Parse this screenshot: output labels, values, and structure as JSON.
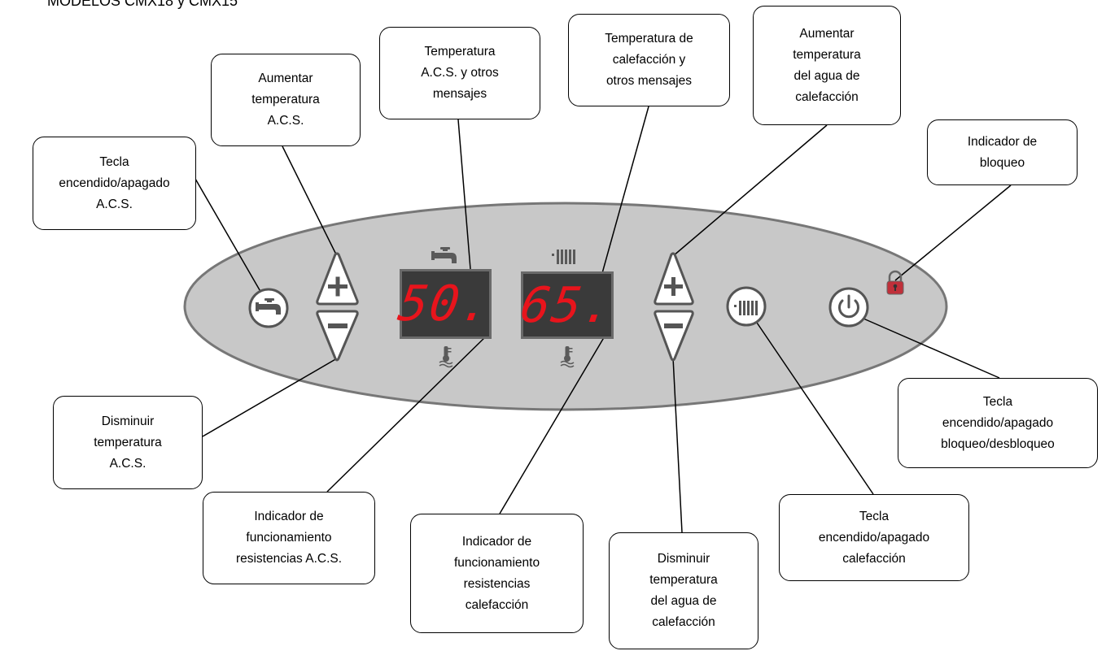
{
  "page_title": "MODELOS CMX18 y CMX15",
  "display": {
    "acs_value": "50.",
    "heating_value": "65."
  },
  "callouts": {
    "tecla_acs": "Tecla\nencendido/apagado\nA.C.S.",
    "aumentar_acs": "Aumentar\ntemperatura\nA.C.S.",
    "temp_acs_mensajes": "Temperatura\nA.C.S. y otros\nmensajes",
    "temp_calefaccion_mensajes": "Temperatura de\ncalefacción y\notros mensajes",
    "aumentar_calefaccion": "Aumentar\ntemperatura\ndel agua de\ncalefacción",
    "indicador_bloqueo": "Indicador  de\nbloqueo",
    "disminuir_acs": "Disminuir\ntemperatura\nA.C.S.",
    "resistencias_acs": "Indicador de\nfuncionamiento\nresistencias  A.C.S.",
    "resistencias_calefaccion": "Indicador  de\nfuncionamiento\nresistencias\ncalefacción",
    "disminuir_calefaccion": "Disminuir\ntemperatura\ndel agua de\ncalefacción",
    "tecla_calefaccion": "Tecla\nencendido/apagado\ncalefacción",
    "tecla_bloqueo": "Tecla\nencendido/apagado\nbloqueo/desbloqueo"
  },
  "icons": {
    "tap": "faucet-icon",
    "radiator": "radiator-icon",
    "power": "power-icon",
    "lock": "padlock-icon",
    "thermometer": "thermometer-water-icon",
    "plus": "plus-icon",
    "minus": "minus-icon"
  },
  "colors": {
    "panel": "#c8c8c8",
    "display_bg": "#3a3a3a",
    "digits": "#e8141c",
    "lock": "#c0303a"
  }
}
